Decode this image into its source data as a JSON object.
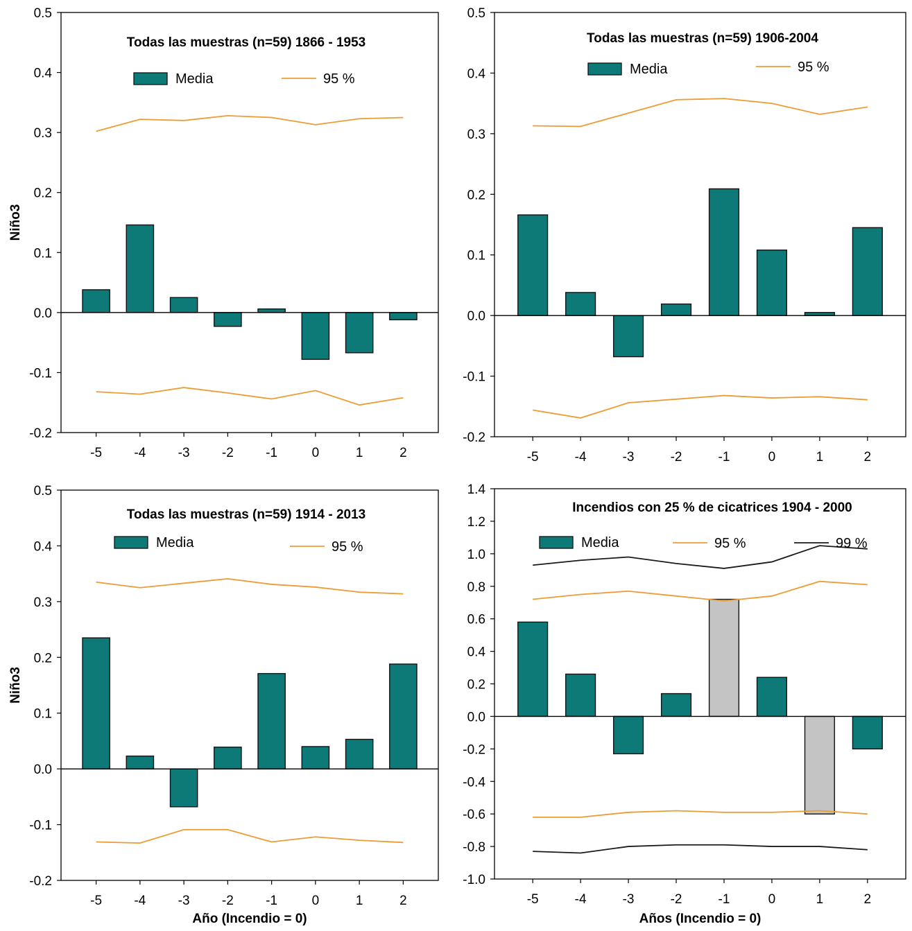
{
  "colors": {
    "bar": "#0e7a78",
    "bar_significant": "#c4c4c4",
    "line_95": "#ed9b33",
    "line_99": "#1a1a1a",
    "axis": "#000000"
  },
  "chart_data": [
    {
      "type": "bar",
      "title": "Todas las muestras  (n=59) 1866 - 1953",
      "xlabel": "",
      "ylabel": "Niño3",
      "categories": [
        "-5",
        "-4",
        "-3",
        "-2",
        "-1",
        "0",
        "1",
        "2"
      ],
      "ylim": [
        -0.2,
        0.5
      ],
      "yticks": [
        "0.5",
        "0.4",
        "0.3",
        "0.2",
        "0.1",
        "0.0",
        "-0.1",
        "-0.2"
      ],
      "grid": false,
      "legend": {
        "placement": "top",
        "bar_label": "Media",
        "line_labels": [
          "95 %"
        ]
      },
      "series": [
        {
          "name": "Media",
          "kind": "bar",
          "values": [
            0.038,
            0.146,
            0.025,
            -0.023,
            0.006,
            -0.078,
            -0.067,
            -0.012
          ]
        },
        {
          "name": "95 %",
          "kind": "line",
          "values": [
            0.302,
            0.322,
            0.32,
            0.328,
            0.325,
            0.313,
            0.323,
            0.325
          ]
        },
        {
          "name": "95 %",
          "kind": "line",
          "values": [
            -0.132,
            -0.136,
            -0.125,
            -0.134,
            -0.144,
            -0.13,
            -0.154,
            -0.142
          ]
        }
      ]
    },
    {
      "type": "bar",
      "title": "Todas las muestras  (n=59) 1906-2004",
      "xlabel": "",
      "ylabel": "",
      "categories": [
        "-5",
        "-4",
        "-3",
        "-2",
        "-1",
        "0",
        "1",
        "2"
      ],
      "ylim": [
        -0.2,
        0.5
      ],
      "yticks": [
        "0.5",
        "0.4",
        "0.3",
        "0.2",
        "0.1",
        "0.0",
        "-0.1",
        "-0.2"
      ],
      "grid": false,
      "legend": {
        "placement": "top",
        "bar_label": "Media",
        "line_labels": [
          "95 %"
        ]
      },
      "series": [
        {
          "name": "Media",
          "kind": "bar",
          "values": [
            0.166,
            0.038,
            -0.068,
            0.019,
            0.209,
            0.108,
            0.005,
            0.145
          ]
        },
        {
          "name": "95 %",
          "kind": "line",
          "values": [
            0.313,
            0.312,
            0.334,
            0.356,
            0.358,
            0.35,
            0.332,
            0.344
          ]
        },
        {
          "name": "95 %",
          "kind": "line",
          "values": [
            -0.156,
            -0.169,
            -0.144,
            -0.138,
            -0.132,
            -0.136,
            -0.134,
            -0.139
          ]
        }
      ]
    },
    {
      "type": "bar",
      "title": "Todas las muestras  (n=59) 1914 - 2013",
      "xlabel": "Año (Incendio = 0)",
      "ylabel": "Niño3",
      "categories": [
        "-5",
        "-4",
        "-3",
        "-2",
        "-1",
        "0",
        "1",
        "2"
      ],
      "ylim": [
        -0.2,
        0.5
      ],
      "yticks": [
        "0.5",
        "0.4",
        "0.3",
        "0.2",
        "0.1",
        "0.0",
        "-0.1",
        "-0.2"
      ],
      "grid": false,
      "legend": {
        "placement": "top",
        "bar_label": "Media",
        "line_labels": [
          "95 %"
        ]
      },
      "series": [
        {
          "name": "Media",
          "kind": "bar",
          "values": [
            0.235,
            0.023,
            -0.068,
            0.039,
            0.171,
            0.04,
            0.053,
            0.188
          ]
        },
        {
          "name": "95 %",
          "kind": "line",
          "values": [
            0.335,
            0.325,
            0.333,
            0.341,
            0.331,
            0.326,
            0.317,
            0.314
          ]
        },
        {
          "name": "95 %",
          "kind": "line",
          "values": [
            -0.131,
            -0.133,
            -0.109,
            -0.109,
            -0.131,
            -0.122,
            -0.128,
            -0.132
          ]
        }
      ]
    },
    {
      "type": "bar",
      "title": "Incendios con 25 % de cicatrices  1904 - 2000",
      "xlabel": "Años (Incendio = 0)",
      "ylabel": "",
      "categories": [
        "-5",
        "-4",
        "-3",
        "-2",
        "-1",
        "0",
        "1",
        "2"
      ],
      "ylim": [
        -1.0,
        1.4
      ],
      "yticks": [
        "1.4",
        "1.2",
        "1.0",
        "0.8",
        "0.6",
        "0.4",
        "0.2",
        "0.0",
        "-0.2",
        "-0.4",
        "-0.6",
        "-0.8",
        "-1.0"
      ],
      "grid": false,
      "legend": {
        "placement": "top",
        "bar_label": "Media",
        "line_labels": [
          "95 %",
          "99 %"
        ]
      },
      "highlighted_categories": [
        "-1",
        "1"
      ],
      "series": [
        {
          "name": "Media",
          "kind": "bar",
          "values": [
            0.58,
            0.26,
            -0.23,
            0.14,
            0.72,
            0.24,
            -0.6,
            -0.2
          ]
        },
        {
          "name": "95 %",
          "kind": "line",
          "values": [
            0.72,
            0.75,
            0.77,
            0.74,
            0.71,
            0.74,
            0.83,
            0.81
          ]
        },
        {
          "name": "95 %",
          "kind": "line",
          "values": [
            -0.62,
            -0.62,
            -0.59,
            -0.58,
            -0.59,
            -0.59,
            -0.58,
            -0.6
          ]
        },
        {
          "name": "99 %",
          "kind": "line",
          "values": [
            0.93,
            0.96,
            0.98,
            0.94,
            0.91,
            0.95,
            1.05,
            1.03
          ]
        },
        {
          "name": "99 %",
          "kind": "line",
          "values": [
            -0.83,
            -0.84,
            -0.8,
            -0.79,
            -0.79,
            -0.8,
            -0.8,
            -0.82
          ]
        }
      ]
    }
  ]
}
